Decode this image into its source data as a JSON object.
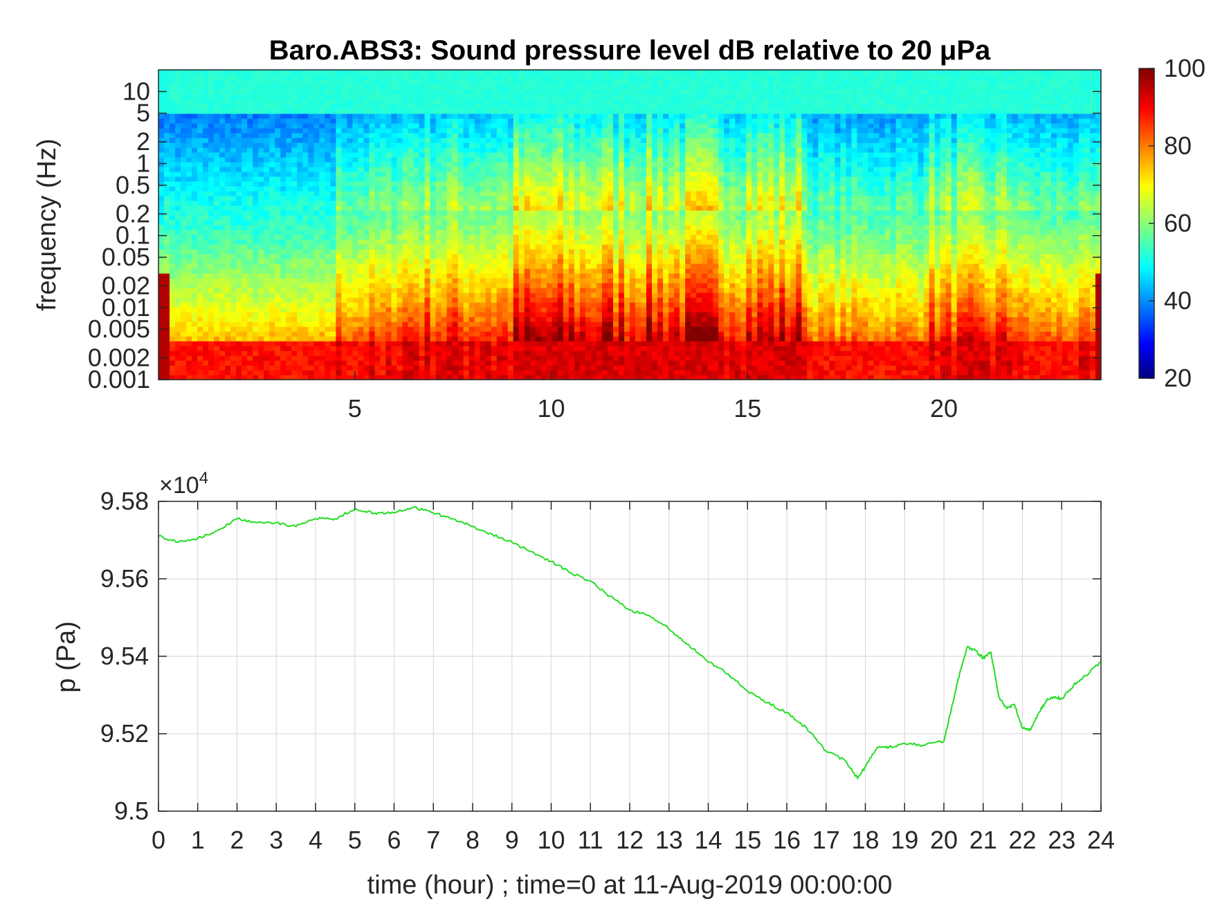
{
  "chart_data": [
    {
      "type": "heatmap",
      "title": "Baro.ABS3: Sound pressure level dB relative to 20 μPa",
      "ylabel": "frequency (Hz)",
      "y_scale": "log",
      "xlim": [
        0,
        24
      ],
      "ylim": [
        0.001,
        20
      ],
      "x_ticks": [
        "5",
        "10",
        "15",
        "20"
      ],
      "y_ticks": [
        "10",
        "5",
        "2",
        "1",
        "0.5",
        "0.2",
        "0.1",
        "0.05",
        "0.02",
        "0.01",
        "0.005",
        "0.002",
        "0.001"
      ],
      "colormap": "jet",
      "colorbar": {
        "ticks": [
          "100",
          "80",
          "60",
          "40",
          "20"
        ],
        "clim": [
          20,
          100
        ]
      },
      "grid": false
    },
    {
      "type": "line",
      "ylabel": "p (Pa)",
      "xlabel": "time (hour) ; time=0 at 11-Aug-2019 00:00:00",
      "y_exponent_label": "×10",
      "y_exponent_power": "4",
      "xlim": [
        0,
        24
      ],
      "ylim": [
        9.5,
        9.58
      ],
      "x_ticks": [
        "0",
        "1",
        "2",
        "3",
        "4",
        "5",
        "6",
        "7",
        "8",
        "9",
        "10",
        "11",
        "12",
        "13",
        "14",
        "15",
        "16",
        "17",
        "18",
        "19",
        "20",
        "21",
        "22",
        "23",
        "24"
      ],
      "y_ticks": [
        "9.58",
        "9.56",
        "9.54",
        "9.52",
        "9.5"
      ],
      "grid": true,
      "series": [
        {
          "color": "#22dd22",
          "x": [
            0,
            0.5,
            1,
            1.5,
            2,
            2.5,
            3,
            3.5,
            4,
            4.5,
            5,
            5.5,
            6,
            6.5,
            7,
            7.5,
            8,
            8.5,
            9,
            9.5,
            10,
            10.5,
            11,
            11.5,
            12,
            12.5,
            13,
            13.5,
            14,
            14.5,
            15,
            15.5,
            16,
            16.5,
            17,
            17.5,
            17.8,
            18,
            18.3,
            18.6,
            19,
            19.5,
            20,
            20.2,
            20.4,
            20.6,
            20.8,
            21,
            21.2,
            21.4,
            21.6,
            21.8,
            22,
            22.2,
            22.4,
            22.6,
            22.8,
            23,
            23.3,
            23.6,
            24
          ],
          "y": [
            9.571,
            9.5695,
            9.5705,
            9.5725,
            9.5755,
            9.5745,
            9.5745,
            9.5735,
            9.5755,
            9.5755,
            9.578,
            9.577,
            9.577,
            9.5785,
            9.577,
            9.5755,
            9.5735,
            9.5715,
            9.5695,
            9.567,
            9.5645,
            9.5615,
            9.5595,
            9.5555,
            9.552,
            9.5505,
            9.547,
            9.543,
            9.5385,
            9.5355,
            9.531,
            9.528,
            9.5255,
            9.5215,
            9.5155,
            9.513,
            9.5085,
            9.5115,
            9.5165,
            9.5165,
            9.5175,
            9.517,
            9.518,
            9.527,
            9.5355,
            9.5425,
            9.5415,
            9.5395,
            9.541,
            9.5295,
            9.5265,
            9.5275,
            9.5215,
            9.521,
            9.525,
            9.5285,
            9.5295,
            9.529,
            9.5325,
            9.535,
            9.5385
          ]
        }
      ]
    }
  ]
}
